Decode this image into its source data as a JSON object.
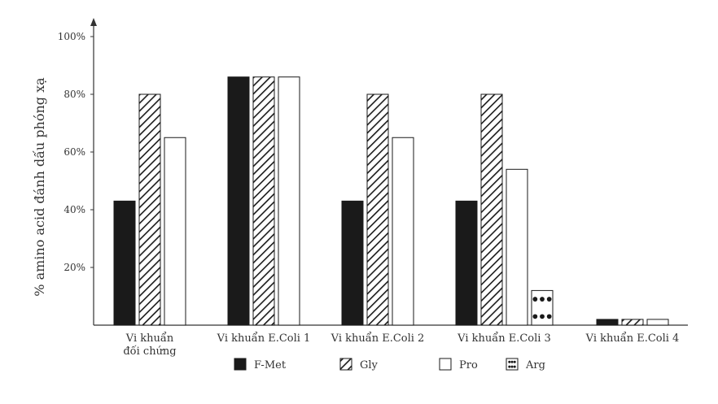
{
  "chart_data": {
    "type": "bar",
    "title": "",
    "xlabel": "",
    "ylabel": "% amino acid đánh dấu phóng xạ",
    "ylim": [
      0,
      100
    ],
    "yticks": [
      20,
      40,
      60,
      80,
      100
    ],
    "ytick_labels": [
      "20%",
      "40%",
      "60%",
      "80%",
      "100%"
    ],
    "categories": [
      [
        "Vi khuẩn",
        "đối chứng"
      ],
      [
        "Vi khuẩn E.Coli 1"
      ],
      [
        "Vi khuẩn E.Coli 2"
      ],
      [
        "Vi khuẩn E.Coli 3"
      ],
      [
        "Vi khuẩn E.Coli 4"
      ]
    ],
    "series": [
      {
        "name": "F-Met",
        "pattern": "solid",
        "color": "#1a1a1a",
        "values": [
          43,
          86,
          43,
          43,
          2
        ]
      },
      {
        "name": "Gly",
        "pattern": "hatch",
        "color": "#1a1a1a",
        "values": [
          80,
          86,
          80,
          80,
          2
        ]
      },
      {
        "name": "Pro",
        "pattern": "empty",
        "color": "#1a1a1a",
        "values": [
          65,
          86,
          65,
          54,
          2
        ]
      },
      {
        "name": "Arg",
        "pattern": "dots",
        "color": "#1a1a1a",
        "values": [
          null,
          null,
          null,
          12,
          null
        ]
      }
    ],
    "grid": false,
    "legend_position": "bottom"
  }
}
